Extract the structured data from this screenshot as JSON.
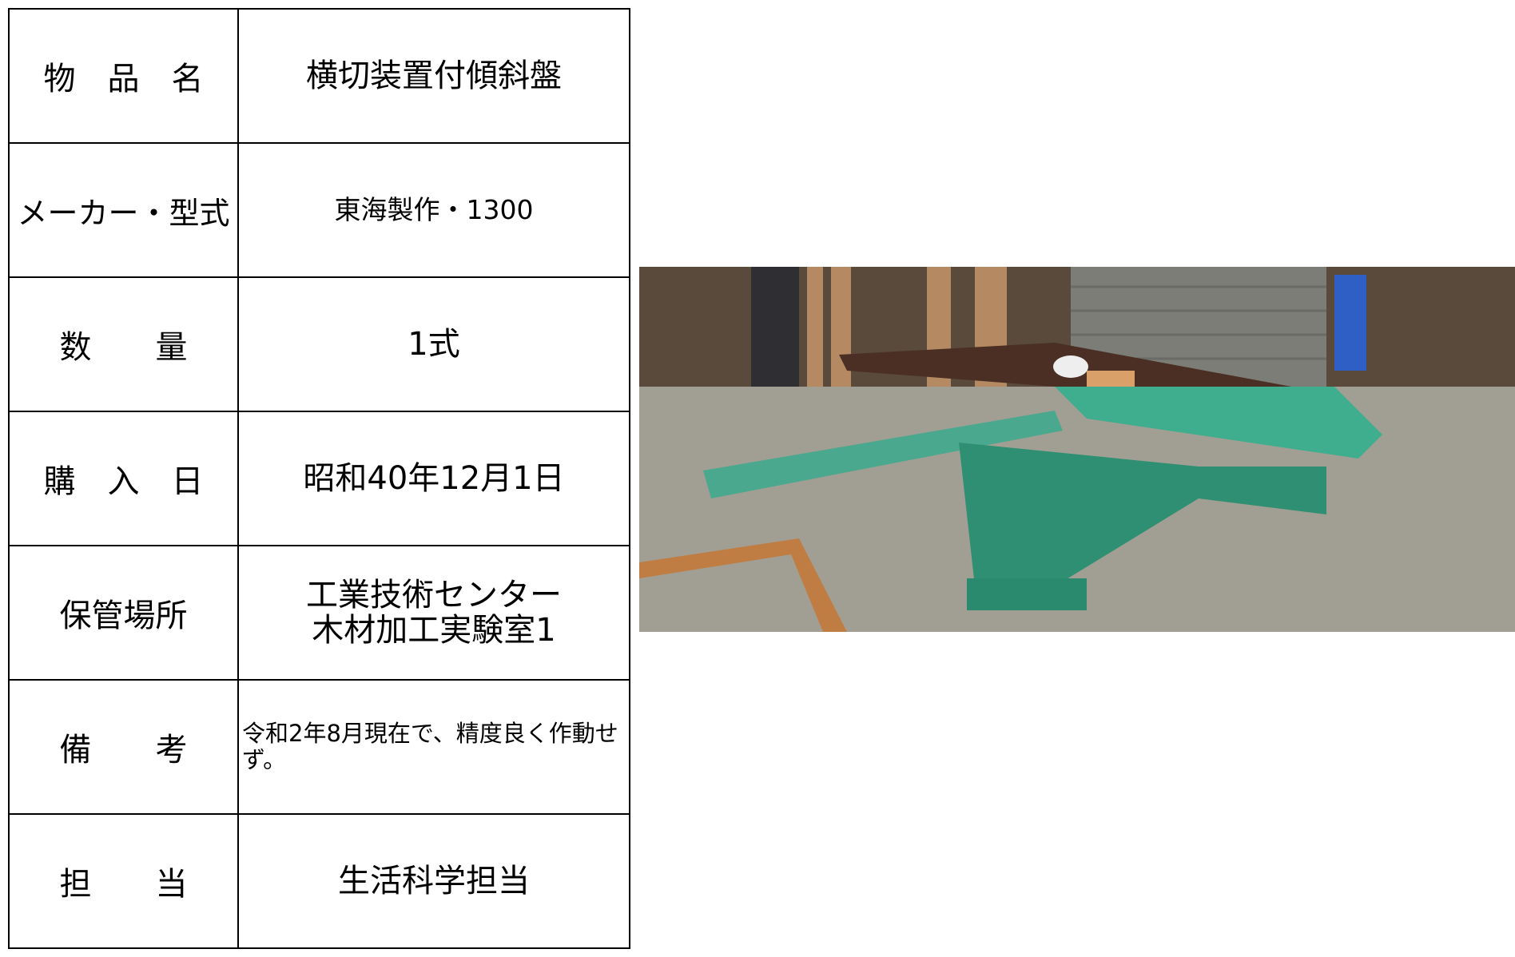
{
  "table": {
    "rows": [
      [
        "物　品　名",
        "横切装置付傾斜盤"
      ],
      [
        "メーカー・型式",
        "東海製作・1300"
      ],
      [
        "数　　量",
        "1式"
      ],
      [
        "購　入　日",
        "昭和40年12月1日"
      ],
      [
        "保管場所",
        "工業技術センター\n木材加工実験室1"
      ],
      [
        "備　　考",
        "令和2年8月現在で、精度良く作動せず。"
      ],
      [
        "担　　当",
        "生活科学担当"
      ]
    ]
  }
}
